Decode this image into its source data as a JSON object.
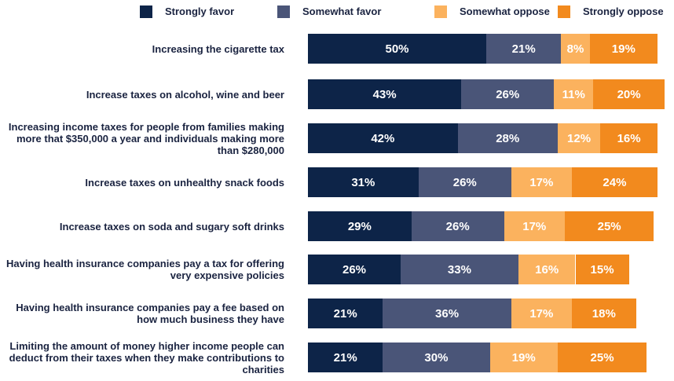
{
  "chart_data": {
    "type": "stacked-bar-horizontal",
    "categories": [
      "Increasing the cigarette tax",
      "Increase taxes on alcohol, wine and beer",
      "Increasing income taxes for people from families making more that $350,000 a year and individuals making more than $280,000",
      "Increase taxes on unhealthy snack foods",
      "Increase taxes on soda and sugary soft drinks",
      "Having health insurance companies pay a tax for offering very expensive policies",
      "Having health insurance companies pay a fee based on how much business they have",
      "Limiting the amount of money higher income people can deduct from their taxes when they make contributions to charities"
    ],
    "xlim": [
      0,
      100
    ],
    "series": [
      {
        "name": "Strongly favor",
        "color": "#0d2448",
        "values": [
          50,
          43,
          42,
          31,
          29,
          26,
          21,
          21
        ],
        "value_labels": [
          "50%",
          "43%",
          "42%",
          "31%",
          "29%",
          "26%",
          "21%",
          "21%"
        ]
      },
      {
        "name": "Somewhat favor",
        "color": "#4a5578",
        "values": [
          21,
          26,
          28,
          26,
          26,
          33,
          36,
          30
        ],
        "value_labels": [
          "21%",
          "26%",
          "28%",
          "26%",
          "26%",
          "33%",
          "36%",
          "30%"
        ]
      },
      {
        "name": "Somewhat oppose",
        "color": "#fbb25e",
        "values": [
          8,
          11,
          12,
          17,
          17,
          16,
          17,
          19
        ],
        "value_labels": [
          "8%",
          "11%",
          "12%",
          "17%",
          "17%",
          "16%",
          "17%",
          "19%"
        ]
      },
      {
        "name": "Strongly oppose",
        "color": "#f28a1e",
        "values": [
          19,
          20,
          16,
          24,
          25,
          15,
          18,
          25
        ],
        "value_labels": [
          "19%",
          "20%",
          "16%",
          "24%",
          "25%",
          "15%",
          "18%",
          "25%"
        ]
      }
    ]
  }
}
